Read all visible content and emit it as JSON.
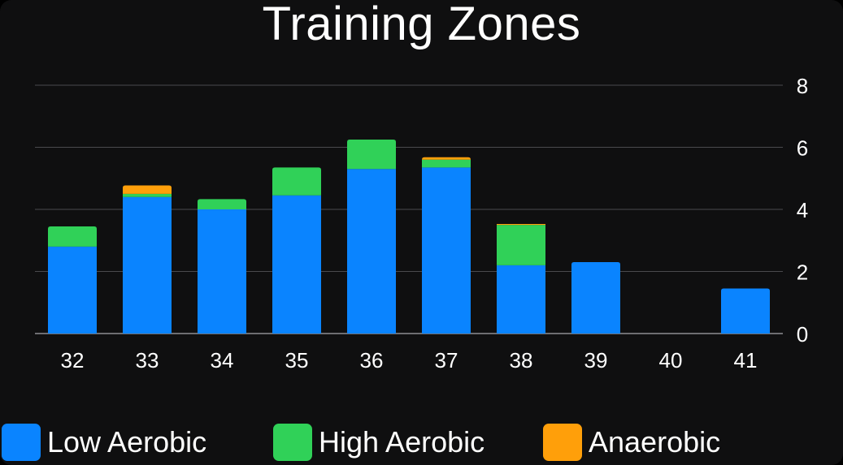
{
  "chart_data": {
    "type": "bar",
    "stacked": true,
    "title": "Training Zones",
    "categories": [
      "32",
      "33",
      "34",
      "35",
      "36",
      "37",
      "38",
      "39",
      "40",
      "41"
    ],
    "series": [
      {
        "name": "Low Aerobic",
        "color": "#0a84ff",
        "values": [
          2.8,
          4.4,
          4.0,
          4.45,
          5.3,
          5.35,
          2.2,
          2.3,
          0,
          1.45
        ]
      },
      {
        "name": "High Aerobic",
        "color": "#30d158",
        "values": [
          0.65,
          0.1,
          0.33,
          0.9,
          0.95,
          0.25,
          1.3,
          0,
          0,
          0
        ]
      },
      {
        "name": "Anaerobic",
        "color": "#ff9f0a",
        "values": [
          0,
          0.27,
          0,
          0,
          0,
          0.08,
          0.03,
          0,
          0,
          0
        ]
      }
    ],
    "ylim": [
      0,
      8
    ],
    "yticks": [
      "0",
      "2",
      "4",
      "6",
      "8"
    ],
    "grid": true,
    "y_axis_side": "right",
    "legend_position": "bottom"
  }
}
